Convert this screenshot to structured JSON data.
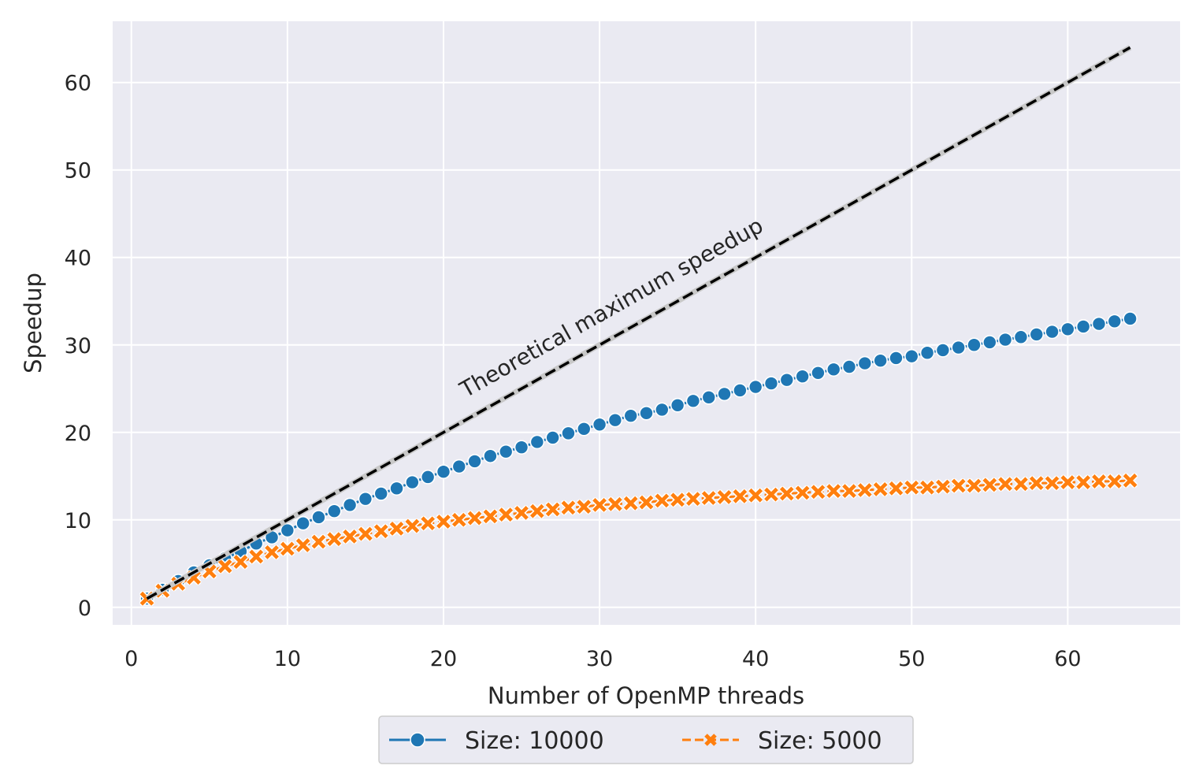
{
  "chart_data": {
    "type": "line",
    "title": "",
    "xlabel": "Number of OpenMP threads",
    "ylabel": "Speedup",
    "xlim": [
      -1.2,
      67.2
    ],
    "ylim": [
      -2,
      67
    ],
    "xticks": [
      0,
      10,
      20,
      30,
      40,
      50,
      60
    ],
    "yticks": [
      0,
      10,
      20,
      30,
      40,
      50,
      60
    ],
    "grid": true,
    "legend_position": "bottom-center-outside",
    "reference_line": {
      "label": "Theoretical maximum speedup",
      "x": [
        1,
        64
      ],
      "y": [
        1,
        64
      ],
      "color": "#000000",
      "style": "dashed"
    },
    "series": [
      {
        "name": "Size: 10000",
        "color": "#1f77b4",
        "marker": "circle",
        "linestyle": "solid",
        "x": [
          1,
          2,
          3,
          4,
          5,
          6,
          7,
          8,
          9,
          10,
          11,
          12,
          13,
          14,
          15,
          16,
          17,
          18,
          19,
          20,
          21,
          22,
          23,
          24,
          25,
          26,
          27,
          28,
          29,
          30,
          31,
          32,
          33,
          34,
          35,
          36,
          37,
          38,
          39,
          40,
          41,
          42,
          43,
          44,
          45,
          46,
          47,
          48,
          49,
          50,
          51,
          52,
          53,
          54,
          55,
          56,
          57,
          58,
          59,
          60,
          61,
          62,
          63,
          64
        ],
        "y": [
          1.0,
          2.0,
          3.0,
          4.0,
          4.8,
          5.6,
          6.4,
          7.3,
          8.0,
          8.8,
          9.6,
          10.3,
          11.0,
          11.7,
          12.4,
          13.0,
          13.6,
          14.3,
          14.9,
          15.5,
          16.1,
          16.7,
          17.3,
          17.8,
          18.3,
          18.9,
          19.4,
          19.9,
          20.4,
          20.9,
          21.4,
          21.9,
          22.2,
          22.6,
          23.1,
          23.6,
          24.0,
          24.4,
          24.8,
          25.2,
          25.6,
          26.0,
          26.4,
          26.8,
          27.2,
          27.5,
          27.9,
          28.2,
          28.5,
          28.7,
          29.1,
          29.4,
          29.7,
          30.0,
          30.3,
          30.6,
          30.9,
          31.2,
          31.5,
          31.8,
          32.1,
          32.4,
          32.7,
          33.0
        ]
      },
      {
        "name": "Size: 5000",
        "color": "#ff7f0e",
        "marker": "x",
        "linestyle": "dashed",
        "x": [
          1,
          2,
          3,
          4,
          5,
          6,
          7,
          8,
          9,
          10,
          11,
          12,
          13,
          14,
          15,
          16,
          17,
          18,
          19,
          20,
          21,
          22,
          23,
          24,
          25,
          26,
          27,
          28,
          29,
          30,
          31,
          32,
          33,
          34,
          35,
          36,
          37,
          38,
          39,
          40,
          41,
          42,
          43,
          44,
          45,
          46,
          47,
          48,
          49,
          50,
          51,
          52,
          53,
          54,
          55,
          56,
          57,
          58,
          59,
          60,
          61,
          62,
          63,
          64
        ],
        "y": [
          1.0,
          1.9,
          2.7,
          3.4,
          4.1,
          4.7,
          5.2,
          5.8,
          6.3,
          6.7,
          7.1,
          7.5,
          7.8,
          8.1,
          8.4,
          8.7,
          9.0,
          9.3,
          9.6,
          9.8,
          10.0,
          10.2,
          10.4,
          10.6,
          10.8,
          11.0,
          11.2,
          11.4,
          11.5,
          11.7,
          11.8,
          11.9,
          12.0,
          12.2,
          12.3,
          12.4,
          12.5,
          12.6,
          12.7,
          12.8,
          12.9,
          13.0,
          13.1,
          13.2,
          13.3,
          13.3,
          13.4,
          13.5,
          13.6,
          13.7,
          13.7,
          13.8,
          13.9,
          13.9,
          14.0,
          14.1,
          14.1,
          14.2,
          14.2,
          14.3,
          14.3,
          14.4,
          14.4,
          14.5
        ]
      }
    ]
  }
}
